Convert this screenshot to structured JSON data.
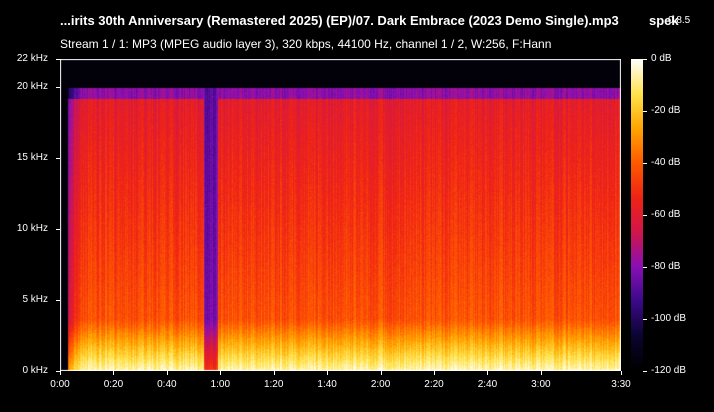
{
  "header": {
    "file_title": "...irits 30th Anniversary (Remastered 2025) (EP)/07.  Dark Embrace (2023 Demo Single).mp3",
    "app_name": "spek",
    "app_version": "0.8.5",
    "stream_info": "Stream 1 / 1: MP3 (MPEG audio layer 3), 320 kbps, 44100 Hz, channel 1 / 2, W:256, F:Hann"
  },
  "chart_data": {
    "type": "heatmap",
    "x_ticks": [
      "0:00",
      "0:20",
      "0:40",
      "1:00",
      "1:20",
      "1:40",
      "2:00",
      "2:20",
      "2:40",
      "3:00",
      "3:30"
    ],
    "x_tick_seconds": [
      0,
      20,
      40,
      60,
      80,
      100,
      120,
      140,
      160,
      180,
      210
    ],
    "y_ticks": [
      "0 kHz",
      "5 kHz",
      "10 kHz",
      "15 kHz",
      "20 kHz",
      "22 kHz"
    ],
    "y_tick_khz": [
      0,
      5,
      10,
      15,
      20,
      22
    ],
    "scale_ticks": [
      "0 dB",
      "-20 dB",
      "-40 dB",
      "-60 dB",
      "-80 dB",
      "-100 dB",
      "-120 dB"
    ],
    "scale_db": [
      0,
      -20,
      -40,
      -60,
      -80,
      -100,
      -120
    ],
    "x_range_seconds": [
      0,
      210
    ],
    "y_range_khz": [
      0,
      22
    ],
    "db_range": [
      -120,
      0
    ],
    "cutoff_khz": 20,
    "colormap": [
      "#000000",
      "#0b0530",
      "#3b0a8a",
      "#8a0fb6",
      "#d1164a",
      "#f02415",
      "#ff5a00",
      "#ffa500",
      "#ffe44d",
      "#ffffff"
    ]
  }
}
